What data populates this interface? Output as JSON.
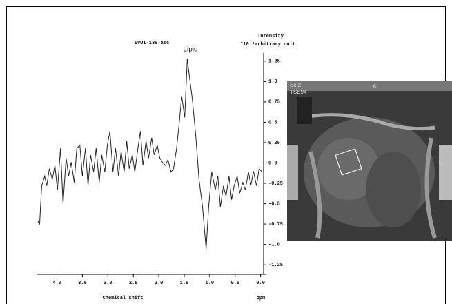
{
  "chart_data": {
    "type": "line",
    "title": "IVOI-136-asc",
    "y_label": "Intensity",
    "y_unit": "*10⁻³arbitrary unit",
    "x_label": "Chemical shift",
    "x_unit": "ppm",
    "annotation": "Lipid",
    "inset_labels": [
      "Sc 2",
      "TSE94",
      "A",
      "L"
    ],
    "xlim": [
      4.4,
      -0.1
    ],
    "ylim": [
      -1.35,
      1.35
    ],
    "xticks": [
      {
        "value": 4,
        "label": "4.0"
      },
      3.5,
      {
        "value": 3,
        "label": "3.0"
      },
      2.5,
      {
        "value": 2,
        "label": "2.0"
      },
      1.5,
      {
        "value": 1,
        "label": "1.0"
      },
      0.5,
      {
        "value": 0,
        "label": "0.0"
      }
    ],
    "yticks": [
      1.25,
      {
        "value": 1,
        "label": "1.0"
      },
      0.75,
      0.5,
      0.25,
      {
        "value": 0,
        "label": "0.0"
      },
      -0.25,
      -0.5,
      -0.75,
      {
        "value": -1,
        "label": "-1.0"
      },
      -1.25
    ],
    "color": "#222222",
    "x": [
      4.38,
      4.34,
      4.3,
      4.24,
      4.2,
      4.15,
      4.09,
      4.04,
      3.99,
      3.93,
      3.88,
      3.82,
      3.77,
      3.72,
      3.66,
      3.61,
      3.55,
      3.5,
      3.44,
      3.39,
      3.34,
      3.28,
      3.23,
      3.17,
      3.12,
      3.06,
      3.01,
      2.96,
      2.9,
      2.85,
      2.79,
      2.74,
      2.68,
      2.63,
      2.58,
      2.52,
      2.47,
      2.41,
      2.36,
      2.31,
      2.25,
      2.2,
      2.14,
      2.09,
      2.03,
      1.98,
      1.93,
      1.87,
      1.82,
      1.76,
      1.71,
      1.65,
      1.6,
      1.55,
      1.49,
      1.44,
      1.4,
      1.34,
      1.27,
      1.21,
      1.14,
      1.07,
      1.02,
      0.96,
      0.89,
      0.84,
      0.79,
      0.73,
      0.68,
      0.62,
      0.57,
      0.52,
      0.46,
      0.41,
      0.35,
      0.3,
      0.24,
      0.19,
      0.14,
      0.08,
      0.03,
      -0.03
    ],
    "values": [
      -0.71,
      -0.75,
      -0.28,
      -0.16,
      -0.28,
      -0.07,
      -0.2,
      -0.03,
      -0.33,
      0.18,
      -0.5,
      0.06,
      -0.16,
      0.01,
      -0.24,
      0.18,
      0.22,
      -0.16,
      0.18,
      -0.28,
      0.1,
      -0.11,
      0.18,
      -0.24,
      0.1,
      -0.11,
      0.22,
      0.39,
      -0.11,
      0.18,
      -0.16,
      0.14,
      -0.11,
      0.27,
      -0.07,
      0.1,
      -0.11,
      0.18,
      0.39,
      -0.03,
      0.27,
      0.06,
      0.31,
      0.1,
      0.22,
      0.06,
      0.01,
      -0.03,
      0.04,
      -0.11,
      -0.07,
      0.18,
      0.48,
      0.82,
      0.56,
      1.28,
      1.07,
      0.78,
      0.31,
      -0.2,
      -0.54,
      -1.06,
      -0.54,
      -0.11,
      -0.33,
      -0.16,
      -0.54,
      -0.28,
      -0.41,
      -0.16,
      -0.45,
      -0.28,
      -0.16,
      -0.37,
      -0.24,
      -0.33,
      -0.11,
      -0.27,
      -0.1,
      -0.28,
      -0.07,
      -0.11
    ]
  }
}
